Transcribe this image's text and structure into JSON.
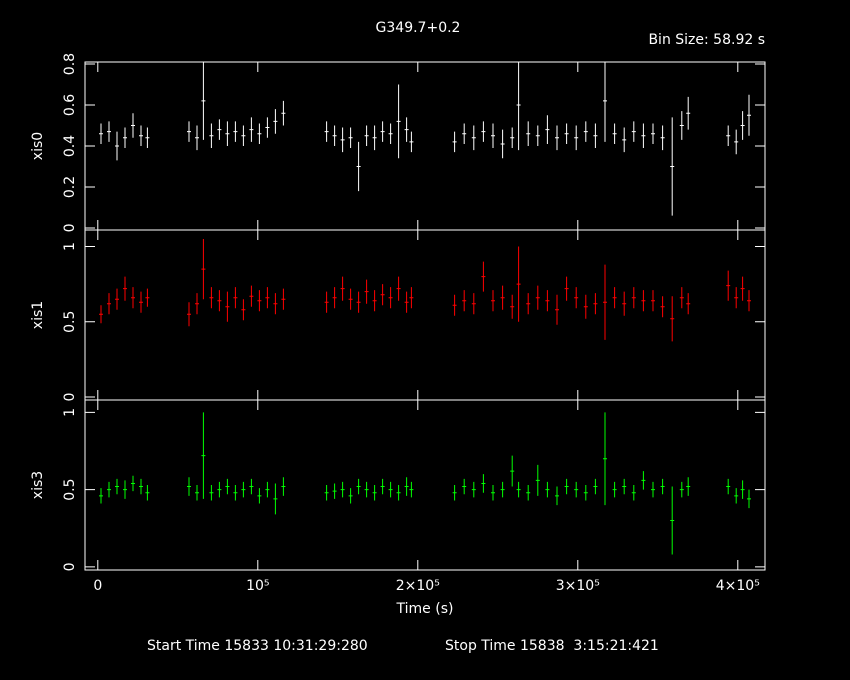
{
  "title": "G349.7+0.2",
  "subtitle": "Bin Size: 58.92 s",
  "start_time": "Start Time 15833 10:31:29:280",
  "stop_time": "Stop Time 15838  3:15:21:421",
  "chart_data": {
    "type": "scatter",
    "x_label": "Time (s)",
    "xlim": [
      -8000,
      417000
    ],
    "xticks": [
      0,
      {
        "value": 100000,
        "label": "10⁵"
      },
      {
        "value": 200000,
        "label": "2×10⁵"
      },
      {
        "value": 300000,
        "label": "3×10⁵"
      },
      {
        "value": 400000,
        "label": "4×10⁵"
      }
    ],
    "x": [
      2000,
      7000,
      12000,
      17000,
      22000,
      27000,
      31000,
      57000,
      62000,
      66000,
      71000,
      76000,
      81000,
      86000,
      91000,
      96000,
      101000,
      106000,
      111000,
      116000,
      143000,
      148000,
      153000,
      158000,
      163000,
      168000,
      173000,
      178000,
      183000,
      188000,
      193000,
      196000,
      223000,
      229000,
      235000,
      241000,
      247000,
      253000,
      259000,
      263000,
      269000,
      275000,
      281000,
      287000,
      293000,
      299000,
      305000,
      311000,
      317000,
      323000,
      329000,
      335000,
      341000,
      347000,
      353000,
      359000,
      365000,
      369000,
      394000,
      399000,
      403000,
      407000
    ],
    "series": [
      {
        "name": "xis0",
        "color": "#ffffff",
        "ylim": [
          -0.01,
          0.81
        ],
        "yticks": [
          0,
          0.2,
          0.4,
          0.6,
          0.8
        ],
        "values": [
          0.46,
          0.47,
          0.4,
          0.44,
          0.5,
          0.45,
          0.44,
          0.47,
          0.44,
          0.62,
          0.45,
          0.48,
          0.46,
          0.47,
          0.45,
          0.48,
          0.46,
          0.49,
          0.52,
          0.56,
          0.47,
          0.45,
          0.43,
          0.44,
          0.3,
          0.45,
          0.44,
          0.47,
          0.46,
          0.52,
          0.48,
          0.42,
          0.42,
          0.46,
          0.44,
          0.47,
          0.45,
          0.41,
          0.44,
          0.6,
          0.46,
          0.45,
          0.48,
          0.44,
          0.46,
          0.44,
          0.47,
          0.45,
          0.62,
          0.46,
          0.43,
          0.47,
          0.45,
          0.46,
          0.44,
          0.3,
          0.5,
          0.56,
          0.45,
          0.42,
          0.5,
          0.55
        ],
        "errors": [
          0.05,
          0.05,
          0.07,
          0.05,
          0.06,
          0.05,
          0.05,
          0.05,
          0.06,
          0.19,
          0.06,
          0.05,
          0.06,
          0.05,
          0.05,
          0.06,
          0.05,
          0.05,
          0.06,
          0.06,
          0.05,
          0.05,
          0.06,
          0.05,
          0.12,
          0.05,
          0.06,
          0.05,
          0.05,
          0.18,
          0.06,
          0.05,
          0.05,
          0.05,
          0.06,
          0.05,
          0.06,
          0.07,
          0.05,
          0.22,
          0.06,
          0.05,
          0.07,
          0.06,
          0.05,
          0.06,
          0.05,
          0.06,
          0.2,
          0.05,
          0.06,
          0.05,
          0.06,
          0.05,
          0.06,
          0.24,
          0.07,
          0.08,
          0.05,
          0.06,
          0.07,
          0.1
        ]
      },
      {
        "name": "xis1",
        "color": "#ff0000",
        "ylim": [
          -0.02,
          1.11
        ],
        "yticks": [
          0,
          0.5,
          1
        ],
        "values": [
          0.55,
          0.62,
          0.65,
          0.72,
          0.66,
          0.63,
          0.66,
          0.55,
          0.62,
          0.85,
          0.66,
          0.64,
          0.6,
          0.66,
          0.58,
          0.67,
          0.64,
          0.66,
          0.62,
          0.65,
          0.63,
          0.66,
          0.72,
          0.65,
          0.63,
          0.7,
          0.64,
          0.68,
          0.66,
          0.72,
          0.63,
          0.66,
          0.61,
          0.64,
          0.62,
          0.8,
          0.64,
          0.66,
          0.6,
          0.75,
          0.62,
          0.66,
          0.64,
          0.58,
          0.72,
          0.66,
          0.6,
          0.62,
          0.63,
          0.66,
          0.62,
          0.66,
          0.64,
          0.64,
          0.6,
          0.52,
          0.66,
          0.62,
          0.74,
          0.66,
          0.72,
          0.64
        ],
        "errors": [
          0.06,
          0.07,
          0.07,
          0.08,
          0.07,
          0.07,
          0.06,
          0.08,
          0.07,
          0.2,
          0.07,
          0.07,
          0.1,
          0.07,
          0.07,
          0.07,
          0.07,
          0.07,
          0.07,
          0.07,
          0.07,
          0.07,
          0.08,
          0.07,
          0.07,
          0.08,
          0.07,
          0.07,
          0.07,
          0.08,
          0.07,
          0.07,
          0.07,
          0.07,
          0.07,
          0.1,
          0.07,
          0.08,
          0.08,
          0.25,
          0.07,
          0.08,
          0.07,
          0.1,
          0.08,
          0.07,
          0.08,
          0.07,
          0.25,
          0.07,
          0.08,
          0.07,
          0.07,
          0.07,
          0.07,
          0.15,
          0.07,
          0.07,
          0.1,
          0.07,
          0.08,
          0.07
        ]
      },
      {
        "name": "xis3",
        "color": "#00ff00",
        "ylim": [
          -0.02,
          1.08
        ],
        "yticks": [
          0,
          0.5,
          1
        ],
        "values": [
          0.46,
          0.5,
          0.52,
          0.5,
          0.54,
          0.52,
          0.48,
          0.52,
          0.48,
          0.72,
          0.48,
          0.5,
          0.52,
          0.48,
          0.5,
          0.52,
          0.46,
          0.5,
          0.44,
          0.52,
          0.48,
          0.49,
          0.5,
          0.46,
          0.52,
          0.5,
          0.48,
          0.52,
          0.5,
          0.48,
          0.52,
          0.5,
          0.48,
          0.52,
          0.5,
          0.54,
          0.48,
          0.5,
          0.62,
          0.5,
          0.48,
          0.56,
          0.5,
          0.46,
          0.52,
          0.5,
          0.48,
          0.52,
          0.7,
          0.5,
          0.52,
          0.48,
          0.56,
          0.5,
          0.52,
          0.3,
          0.5,
          0.52,
          0.52,
          0.46,
          0.5,
          0.44
        ],
        "errors": [
          0.05,
          0.05,
          0.05,
          0.06,
          0.05,
          0.05,
          0.05,
          0.06,
          0.05,
          0.28,
          0.05,
          0.05,
          0.05,
          0.05,
          0.05,
          0.05,
          0.05,
          0.05,
          0.1,
          0.06,
          0.05,
          0.05,
          0.05,
          0.05,
          0.05,
          0.05,
          0.05,
          0.05,
          0.05,
          0.05,
          0.06,
          0.05,
          0.05,
          0.05,
          0.05,
          0.06,
          0.05,
          0.05,
          0.1,
          0.05,
          0.05,
          0.1,
          0.05,
          0.06,
          0.05,
          0.05,
          0.05,
          0.05,
          0.3,
          0.05,
          0.05,
          0.05,
          0.06,
          0.05,
          0.05,
          0.22,
          0.05,
          0.06,
          0.05,
          0.05,
          0.06,
          0.06
        ]
      }
    ]
  }
}
